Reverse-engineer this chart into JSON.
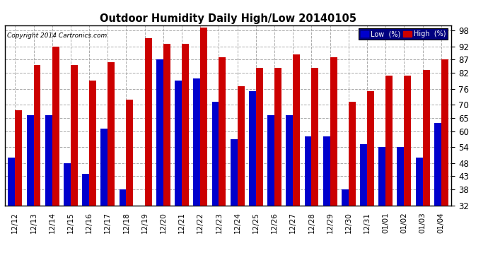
{
  "title": "Outdoor Humidity Daily High/Low 20140105",
  "copyright": "Copyright 2014 Cartronics.com",
  "legend_low": "Low  (%)",
  "legend_high": "High  (%)",
  "dates": [
    "12/12",
    "12/13",
    "12/14",
    "12/15",
    "12/16",
    "12/17",
    "12/18",
    "12/19",
    "12/20",
    "12/21",
    "12/22",
    "12/23",
    "12/24",
    "12/25",
    "12/26",
    "12/27",
    "12/28",
    "12/29",
    "12/30",
    "12/31",
    "01/01",
    "01/02",
    "01/03",
    "01/04"
  ],
  "high": [
    68,
    85,
    92,
    85,
    79,
    86,
    72,
    95,
    93,
    93,
    99,
    88,
    77,
    84,
    84,
    89,
    84,
    88,
    71,
    75,
    81,
    81,
    83,
    87
  ],
  "low": [
    50,
    66,
    66,
    48,
    44,
    61,
    38,
    32,
    87,
    79,
    80,
    71,
    57,
    75,
    66,
    66,
    58,
    58,
    38,
    55,
    54,
    54,
    50,
    63
  ],
  "low_color": "#0000cc",
  "high_color": "#cc0000",
  "bg_color": "#ffffff",
  "grid_color": "#aaaaaa",
  "ylim_min": 32,
  "ylim_max": 100,
  "yticks": [
    32,
    38,
    43,
    48,
    54,
    60,
    65,
    70,
    76,
    82,
    87,
    92,
    98
  ],
  "bar_width": 0.38,
  "baseline": 32
}
